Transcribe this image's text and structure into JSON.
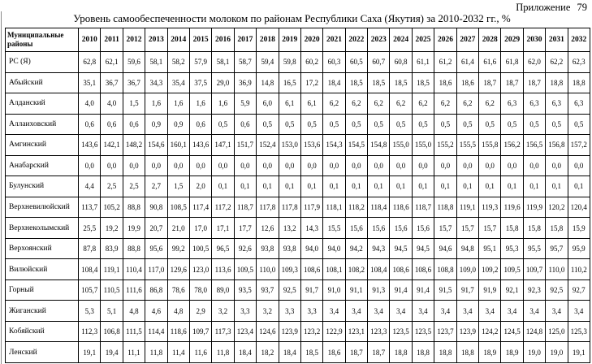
{
  "appendix": "Приложение 79",
  "title": "Уровень самообеспеченности молоком по районам Республики Саха (Якутия) за 2010-2032 гг., %",
  "table": {
    "corner_header": "Муниципальные районы",
    "years": [
      "2010",
      "2011",
      "2012",
      "2013",
      "2014",
      "2015",
      "2016",
      "2017",
      "2018",
      "2019",
      "2020",
      "2021",
      "2022",
      "2023",
      "2024",
      "2025",
      "2026",
      "2027",
      "2028",
      "2029",
      "2030",
      "2031",
      "2032"
    ],
    "rows": [
      {
        "district": "РС (Я)",
        "values": [
          "62,8",
          "62,1",
          "59,6",
          "58,1",
          "58,2",
          "57,9",
          "58,1",
          "58,7",
          "59,4",
          "59,8",
          "60,2",
          "60,3",
          "60,5",
          "60,7",
          "60,8",
          "61,1",
          "61,2",
          "61,4",
          "61,6",
          "61,8",
          "62,0",
          "62,2",
          "62,3"
        ]
      },
      {
        "district": "Абыйский",
        "values": [
          "35,1",
          "36,7",
          "36,7",
          "34,3",
          "35,4",
          "37,5",
          "29,0",
          "36,9",
          "14,8",
          "16,5",
          "17,2",
          "18,4",
          "18,5",
          "18,5",
          "18,5",
          "18,5",
          "18,6",
          "18,6",
          "18,7",
          "18,7",
          "18,7",
          "18,8",
          "18,8"
        ]
      },
      {
        "district": "Алданский",
        "values": [
          "4,0",
          "4,0",
          "1,5",
          "1,6",
          "1,6",
          "1,6",
          "1,6",
          "5,9",
          "6,0",
          "6,1",
          "6,1",
          "6,2",
          "6,2",
          "6,2",
          "6,2",
          "6,2",
          "6,2",
          "6,2",
          "6,2",
          "6,3",
          "6,3",
          "6,3",
          "6,3"
        ]
      },
      {
        "district": "Аллаиховский",
        "values": [
          "0,6",
          "0,6",
          "0,6",
          "0,9",
          "0,9",
          "0,6",
          "0,5",
          "0,6",
          "0,5",
          "0,5",
          "0,5",
          "0,5",
          "0,5",
          "0,5",
          "0,5",
          "0,5",
          "0,5",
          "0,5",
          "0,5",
          "0,5",
          "0,5",
          "0,5",
          "0,5"
        ]
      },
      {
        "district": "Амгинский",
        "values": [
          "143,6",
          "142,1",
          "148,2",
          "154,6",
          "160,1",
          "143,6",
          "147,1",
          "151,7",
          "152,4",
          "153,0",
          "153,6",
          "154,3",
          "154,5",
          "154,8",
          "155,0",
          "155,0",
          "155,2",
          "155,5",
          "155,8",
          "156,2",
          "156,5",
          "156,8",
          "157,2"
        ]
      },
      {
        "district": "Анабарский",
        "values": [
          "0,0",
          "0,0",
          "0,0",
          "0,0",
          "0,0",
          "0,0",
          "0,0",
          "0,0",
          "0,0",
          "0,0",
          "0,0",
          "0,0",
          "0,0",
          "0,0",
          "0,0",
          "0,0",
          "0,0",
          "0,0",
          "0,0",
          "0,0",
          "0,0",
          "0,0",
          "0,0"
        ]
      },
      {
        "district": "Булунский",
        "values": [
          "4,4",
          "2,5",
          "2,5",
          "2,7",
          "1,5",
          "2,0",
          "0,1",
          "0,1",
          "0,1",
          "0,1",
          "0,1",
          "0,1",
          "0,1",
          "0,1",
          "0,1",
          "0,1",
          "0,1",
          "0,1",
          "0,1",
          "0,1",
          "0,1",
          "0,1",
          "0,1"
        ]
      },
      {
        "district": "Верхневилюйский",
        "values": [
          "113,7",
          "105,2",
          "88,8",
          "90,8",
          "108,5",
          "117,4",
          "117,2",
          "118,7",
          "117,8",
          "117,8",
          "117,9",
          "118,1",
          "118,2",
          "118,4",
          "118,6",
          "118,7",
          "118,8",
          "119,1",
          "119,3",
          "119,6",
          "119,9",
          "120,2",
          "120,4"
        ]
      },
      {
        "district": "Верхнеколымский",
        "values": [
          "25,5",
          "19,2",
          "19,9",
          "20,7",
          "21,0",
          "17,0",
          "17,1",
          "17,7",
          "12,6",
          "13,2",
          "14,3",
          "15,5",
          "15,6",
          "15,6",
          "15,6",
          "15,6",
          "15,7",
          "15,7",
          "15,7",
          "15,8",
          "15,8",
          "15,8",
          "15,9"
        ]
      },
      {
        "district": "Верхоянский",
        "values": [
          "87,8",
          "83,9",
          "88,8",
          "95,6",
          "99,2",
          "100,5",
          "96,5",
          "92,6",
          "93,8",
          "93,8",
          "94,0",
          "94,0",
          "94,2",
          "94,3",
          "94,5",
          "94,5",
          "94,6",
          "94,8",
          "95,1",
          "95,3",
          "95,5",
          "95,7",
          "95,9"
        ]
      },
      {
        "district": "Вилюйский",
        "values": [
          "108,4",
          "119,1",
          "110,4",
          "117,0",
          "129,6",
          "123,0",
          "113,6",
          "109,5",
          "110,0",
          "109,3",
          "108,6",
          "108,1",
          "108,2",
          "108,4",
          "108,6",
          "108,6",
          "108,8",
          "109,0",
          "109,2",
          "109,5",
          "109,7",
          "110,0",
          "110,2"
        ]
      },
      {
        "district": "Горный",
        "values": [
          "105,7",
          "110,5",
          "111,6",
          "86,8",
          "78,6",
          "78,0",
          "89,0",
          "93,5",
          "93,7",
          "92,5",
          "91,7",
          "91,0",
          "91,1",
          "91,3",
          "91,4",
          "91,4",
          "91,5",
          "91,7",
          "91,9",
          "92,1",
          "92,3",
          "92,5",
          "92,7"
        ]
      },
      {
        "district": "Жиганский",
        "values": [
          "5,3",
          "5,1",
          "4,8",
          "4,6",
          "4,8",
          "2,9",
          "3,2",
          "3,3",
          "3,2",
          "3,3",
          "3,3",
          "3,4",
          "3,4",
          "3,4",
          "3,4",
          "3,4",
          "3,4",
          "3,4",
          "3,4",
          "3,4",
          "3,4",
          "3,4",
          "3,4"
        ]
      },
      {
        "district": "Кобяйский",
        "values": [
          "112,3",
          "106,8",
          "111,5",
          "114,4",
          "118,6",
          "109,7",
          "117,3",
          "123,4",
          "124,6",
          "123,9",
          "123,2",
          "122,9",
          "123,1",
          "123,3",
          "123,5",
          "123,5",
          "123,7",
          "123,9",
          "124,2",
          "124,5",
          "124,8",
          "125,0",
          "125,3"
        ]
      },
      {
        "district": "Ленский",
        "values": [
          "19,1",
          "19,4",
          "11,1",
          "11,8",
          "11,4",
          "11,6",
          "11,8",
          "18,4",
          "18,2",
          "18,4",
          "18,5",
          "18,6",
          "18,7",
          "18,7",
          "18,8",
          "18,8",
          "18,8",
          "18,8",
          "18,9",
          "18,9",
          "19,0",
          "19,0",
          "19,1"
        ]
      }
    ]
  }
}
